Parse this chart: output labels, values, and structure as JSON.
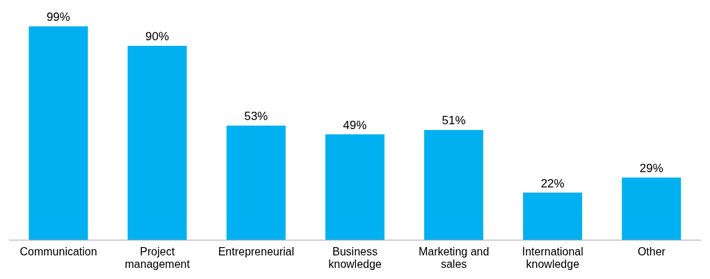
{
  "chart_data": {
    "type": "bar",
    "categories": [
      "Communication",
      "Project management",
      "Entrepreneurial",
      "Business knowledge",
      "Marketing and sales",
      "International knowledge",
      "Other"
    ],
    "values": [
      99,
      90,
      53,
      49,
      51,
      22,
      29
    ],
    "value_labels": [
      "99%",
      "90%",
      "53%",
      "49%",
      "51%",
      "22%",
      "29%"
    ],
    "color": "#00b0f0",
    "grid": false,
    "legend": false
  }
}
